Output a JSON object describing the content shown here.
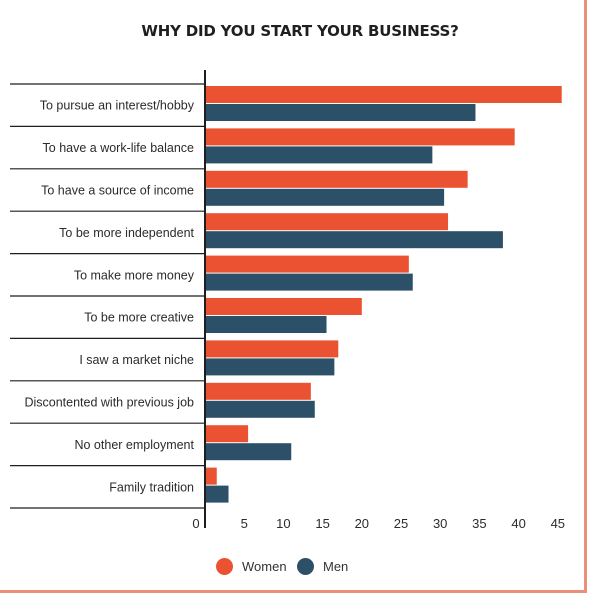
{
  "chart_data": {
    "type": "bar",
    "orientation": "horizontal",
    "title": "WHY DID YOU START YOUR BUSINESS?",
    "categories": [
      "To pursue an interest/hobby",
      "To have a work-life balance",
      "To have a source of income",
      "To be more independent",
      "To make more money",
      "To be more creative",
      "I saw a market niche",
      "Discontented with previous job",
      "No other employment",
      "Family tradition"
    ],
    "series": [
      {
        "name": "Women",
        "color": "#ea5232",
        "values": [
          45.5,
          39.5,
          33.5,
          31,
          26,
          20,
          17,
          13.5,
          5.5,
          1.5
        ]
      },
      {
        "name": "Men",
        "color": "#2d5069",
        "values": [
          34.5,
          29,
          30.5,
          38,
          26.5,
          15.5,
          16.5,
          14,
          11,
          3
        ]
      }
    ],
    "xlim": [
      0,
      46
    ],
    "xticks": [
      0,
      5,
      10,
      15,
      20,
      25,
      30,
      35,
      40,
      45
    ],
    "xlabel": "",
    "ylabel": "",
    "grid": false,
    "legend_position": "bottom"
  }
}
